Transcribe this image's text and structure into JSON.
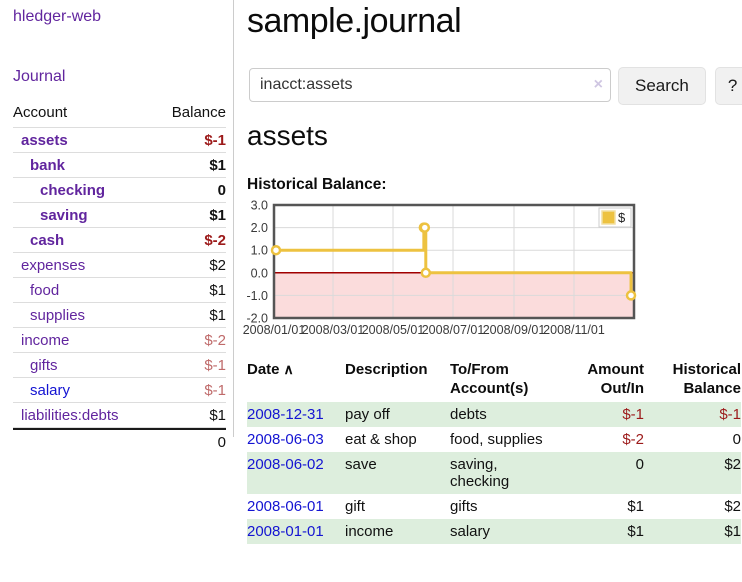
{
  "app": {
    "brand": "hledger-web",
    "nav": {
      "journal": "Journal"
    }
  },
  "colors": {
    "link_purple": "#61259e",
    "link_blue": "#1414d2",
    "negative_strong": "#9c1a1a",
    "negative_soft": "#bf6a6a",
    "row_stripe_green": "#ddeedd",
    "series_yellow": "#edc240",
    "below_zero_pink": "#fbdcdc",
    "zero_line_red": "#a00000"
  },
  "sidebar": {
    "header": {
      "account": "Account",
      "balance": "Balance"
    },
    "rows": [
      {
        "account": "assets",
        "balance": "$-1"
      },
      {
        "account": "bank",
        "balance": "$1"
      },
      {
        "account": "checking",
        "balance": "0"
      },
      {
        "account": "saving",
        "balance": "$1"
      },
      {
        "account": "cash",
        "balance": "$-2"
      },
      {
        "account": "expenses",
        "balance": "$2"
      },
      {
        "account": "food",
        "balance": "$1"
      },
      {
        "account": "supplies",
        "balance": "$1"
      },
      {
        "account": "income",
        "balance": "$-2"
      },
      {
        "account": "gifts",
        "balance": "$-1"
      },
      {
        "account": "salary",
        "balance": "$-1"
      },
      {
        "account": "liabilities:debts",
        "balance": "$1"
      }
    ],
    "total": "0"
  },
  "main": {
    "title": "sample.journal",
    "search": {
      "value": "inacct:assets",
      "clear_icon": "×",
      "search_button": "Search",
      "help_button": "?"
    },
    "account_heading": "assets",
    "chart_label": "Historical Balance:"
  },
  "chart_data": {
    "type": "line",
    "step": true,
    "title": "Historical Balance",
    "x_range": [
      "2008-01-01",
      "2009-01-01"
    ],
    "x": [
      "2008-01-01",
      "2008-06-01",
      "2008-06-02",
      "2008-06-03",
      "2008-12-31"
    ],
    "series": [
      {
        "name": "$",
        "color": "#edc240",
        "values": [
          1.0,
          2.0,
          2.0,
          0.0,
          -1.0
        ]
      }
    ],
    "ylim": [
      -2.0,
      3.0
    ],
    "yticks": [
      3.0,
      2.0,
      1.0,
      0.0,
      -1.0,
      -2.0
    ],
    "ytick_labels": [
      "3.0",
      "2.0",
      "1.0",
      "0.0",
      "-1.0",
      "-2.0"
    ],
    "xticks": [
      "2008-01-01",
      "2008-03-01",
      "2008-05-01",
      "2008-07-01",
      "2008-09-01",
      "2008-11-01"
    ],
    "xtick_labels": [
      "2008/01/01",
      "2008/03/01",
      "2008/05/01",
      "2008/07/01",
      "2008/09/01",
      "2008/11/01"
    ],
    "grid": true,
    "legend_position": "top-right",
    "below_zero_fill": "#fbdcdc",
    "zero_line_color": "#a00000"
  },
  "register": {
    "headers": {
      "date": "Date",
      "sort_icon": "∧",
      "description": "Description",
      "accounts_1": "To/From",
      "accounts_2": "Account(s)",
      "amount_1": "Amount",
      "amount_2": "Out/In",
      "balance_1": "Historical",
      "balance_2": "Balance"
    },
    "rows": [
      {
        "date": "2008-12-31",
        "description": "pay off",
        "accounts": "debts",
        "amount": "$-1",
        "balance": "$-1"
      },
      {
        "date": "2008-06-03",
        "description": "eat & shop",
        "accounts": "food, supplies",
        "amount": "$-2",
        "balance": "0"
      },
      {
        "date": "2008-06-02",
        "description": "save",
        "accounts": "saving, checking",
        "amount": "0",
        "balance": "$2"
      },
      {
        "date": "2008-06-01",
        "description": "gift",
        "accounts": "gifts",
        "amount": "$1",
        "balance": "$2"
      },
      {
        "date": "2008-01-01",
        "description": "income",
        "accounts": "salary",
        "amount": "$1",
        "balance": "$1"
      }
    ]
  }
}
